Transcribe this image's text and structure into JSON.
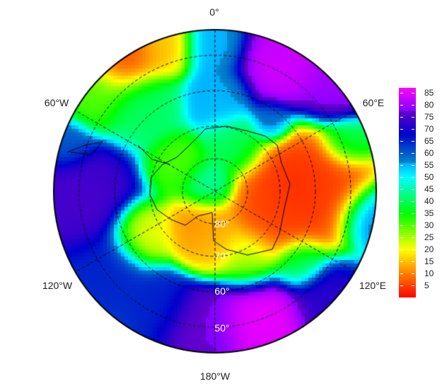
{
  "map": {
    "projection": "south polar stereographic",
    "longitude_labels": [
      "0°",
      "60°E",
      "120°E",
      "180°W",
      "120°W",
      "60°W"
    ],
    "latitude_labels": [
      "80°",
      "70°",
      "60°",
      "50°"
    ],
    "graticule": "dashed"
  },
  "colorbar": {
    "ticks": [
      "85",
      "80",
      "75",
      "70",
      "65",
      "60",
      "55",
      "50",
      "45",
      "40",
      "35",
      "30",
      "25",
      "20",
      "15",
      "10",
      "5"
    ],
    "range": [
      0,
      87
    ],
    "colormap": "red-yellow-green-cyan-blue-magenta",
    "colors": {
      "low": "#ff0000",
      "mid": "#00ffff",
      "high": "#ff00ff"
    }
  }
}
